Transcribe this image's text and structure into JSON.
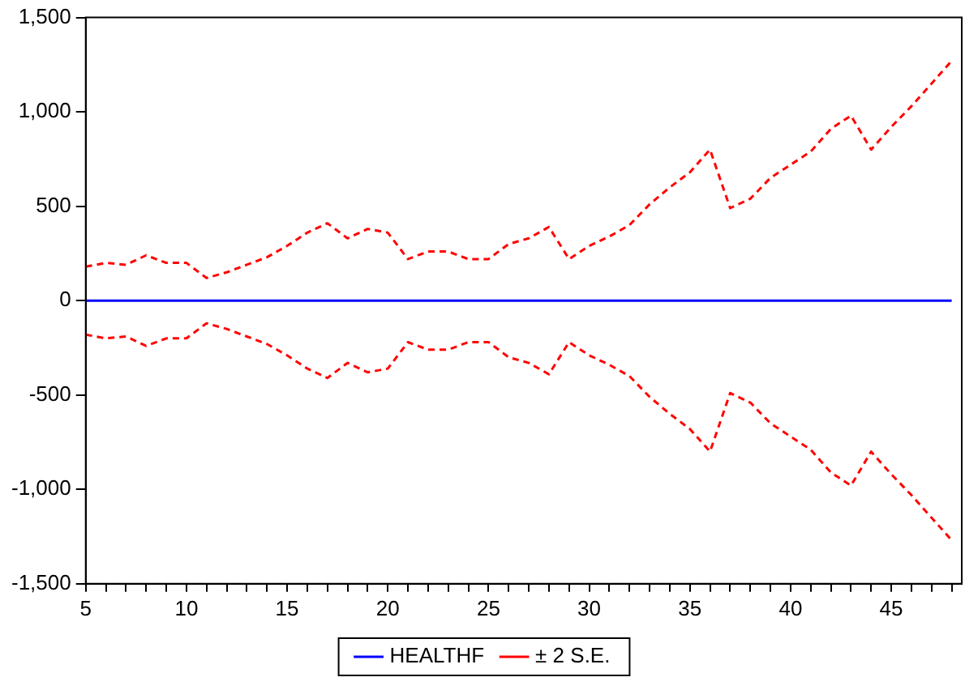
{
  "chart_data": {
    "type": "line",
    "x": [
      5,
      6,
      7,
      8,
      9,
      10,
      11,
      12,
      13,
      14,
      15,
      16,
      17,
      18,
      19,
      20,
      21,
      22,
      23,
      24,
      25,
      26,
      27,
      28,
      29,
      30,
      31,
      32,
      33,
      34,
      35,
      36,
      37,
      38,
      39,
      40,
      41,
      42,
      43,
      44,
      45,
      46,
      47,
      48
    ],
    "series": [
      {
        "name": "HEALTHF",
        "color": "#0000ff",
        "line_style": "solid",
        "values": [
          0,
          0,
          0,
          0,
          0,
          0,
          0,
          0,
          0,
          0,
          0,
          0,
          0,
          0,
          0,
          0,
          0,
          0,
          0,
          0,
          0,
          0,
          0,
          0,
          0,
          0,
          0,
          0,
          0,
          0,
          0,
          0,
          0,
          0,
          0,
          0,
          0,
          0,
          0,
          0,
          0,
          0,
          0,
          0
        ]
      },
      {
        "name": "± 2 S.E.",
        "color": "#ff0000",
        "line_style": "dashed",
        "values": [
          180,
          200,
          190,
          240,
          200,
          200,
          120,
          150,
          190,
          230,
          290,
          360,
          410,
          330,
          380,
          360,
          220,
          260,
          260,
          220,
          220,
          300,
          330,
          390,
          220,
          290,
          340,
          400,
          510,
          600,
          680,
          800,
          490,
          540,
          650,
          720,
          790,
          910,
          980,
          800,
          920,
          1030,
          1150,
          1270
        ]
      },
      {
        "color": "#ff0000",
        "line_style": "dashed",
        "values": [
          -180,
          -200,
          -190,
          -240,
          -200,
          -200,
          -120,
          -150,
          -190,
          -230,
          -290,
          -360,
          -410,
          -330,
          -380,
          -360,
          -220,
          -260,
          -260,
          -220,
          -220,
          -300,
          -330,
          -390,
          -220,
          -290,
          -340,
          -400,
          -510,
          -600,
          -680,
          -800,
          -490,
          -540,
          -650,
          -720,
          -790,
          -910,
          -980,
          -800,
          -920,
          -1030,
          -1150,
          -1270
        ]
      }
    ],
    "xlim": [
      5,
      48.5
    ],
    "xticks": [
      5,
      {
        "value": 6,
        "label": null
      },
      {
        "value": 7,
        "label": null
      },
      {
        "value": 8,
        "label": null
      },
      {
        "value": 9,
        "label": null
      },
      10,
      {
        "value": 11,
        "label": null
      },
      {
        "value": 12,
        "label": null
      },
      {
        "value": 13,
        "label": null
      },
      {
        "value": 14,
        "label": null
      },
      15,
      {
        "value": 16,
        "label": null
      },
      {
        "value": 17,
        "label": null
      },
      {
        "value": 18,
        "label": null
      },
      {
        "value": 19,
        "label": null
      },
      20,
      {
        "value": 21,
        "label": null
      },
      {
        "value": 22,
        "label": null
      },
      {
        "value": 23,
        "label": null
      },
      {
        "value": 24,
        "label": null
      },
      25,
      {
        "value": 26,
        "label": null
      },
      {
        "value": 27,
        "label": null
      },
      {
        "value": 28,
        "label": null
      },
      {
        "value": 29,
        "label": null
      },
      30,
      {
        "value": 31,
        "label": null
      },
      {
        "value": 32,
        "label": null
      },
      {
        "value": 33,
        "label": null
      },
      {
        "value": 34,
        "label": null
      },
      35,
      {
        "value": 36,
        "label": null
      },
      {
        "value": 37,
        "label": null
      },
      {
        "value": 38,
        "label": null
      },
      {
        "value": 39,
        "label": null
      },
      40,
      {
        "value": 41,
        "label": null
      },
      {
        "value": 42,
        "label": null
      },
      {
        "value": 43,
        "label": null
      },
      {
        "value": 44,
        "label": null
      },
      45,
      {
        "value": 46,
        "label": null
      },
      {
        "value": 47,
        "label": null
      },
      {
        "value": 48,
        "label": null
      }
    ],
    "ylim": [
      -1500,
      1500
    ],
    "yticks": [
      {
        "value": -1500,
        "label": "-1,500"
      },
      {
        "value": -1000,
        "label": "-1,000"
      },
      -500,
      0,
      500,
      {
        "value": 1000,
        "label": "1,000"
      },
      {
        "value": 1500,
        "label": "1,500"
      }
    ],
    "grid": false,
    "legend": "bottom",
    "marker": "none"
  }
}
